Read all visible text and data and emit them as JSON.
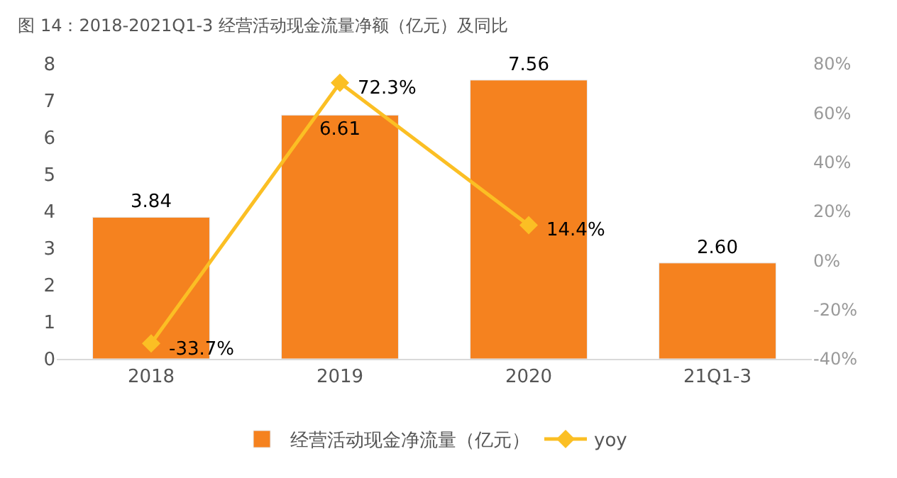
{
  "chart_data": {
    "type": "bar",
    "title": "图 14：2018-2021Q1-3 经营活动现金流量净额（亿元）及同比",
    "categories": [
      "2018",
      "2019",
      "2020",
      "21Q1-3"
    ],
    "series": [
      {
        "name": "经营活动现金净流量（亿元）",
        "color": "#f5821f",
        "values": [
          3.84,
          6.61,
          7.56,
          2.6
        ],
        "value_labels": [
          "3.84",
          "6.61",
          "7.56",
          "2.60"
        ]
      },
      {
        "name": "yoy",
        "type": "line",
        "axis": "y2",
        "color": "#fbbf24",
        "marker": "diamond",
        "values": [
          -33.7,
          72.3,
          14.4,
          null
        ],
        "value_labels": [
          "-33.7%",
          "72.3%",
          "14.4%",
          null
        ]
      }
    ],
    "ylim": [
      0,
      8
    ],
    "yticks": [
      0,
      1,
      2,
      3,
      4,
      5,
      6,
      7,
      8
    ],
    "y2lim": [
      -40,
      80
    ],
    "y2ticks": [
      {
        "value": -40,
        "label": "-40%"
      },
      {
        "value": -20,
        "label": "-20%"
      },
      {
        "value": 0,
        "label": "0%"
      },
      {
        "value": 20,
        "label": "20%"
      },
      {
        "value": 40,
        "label": "40%"
      },
      {
        "value": 60,
        "label": "60%"
      },
      {
        "value": 80,
        "label": "80%"
      }
    ],
    "legend": "bottom"
  }
}
